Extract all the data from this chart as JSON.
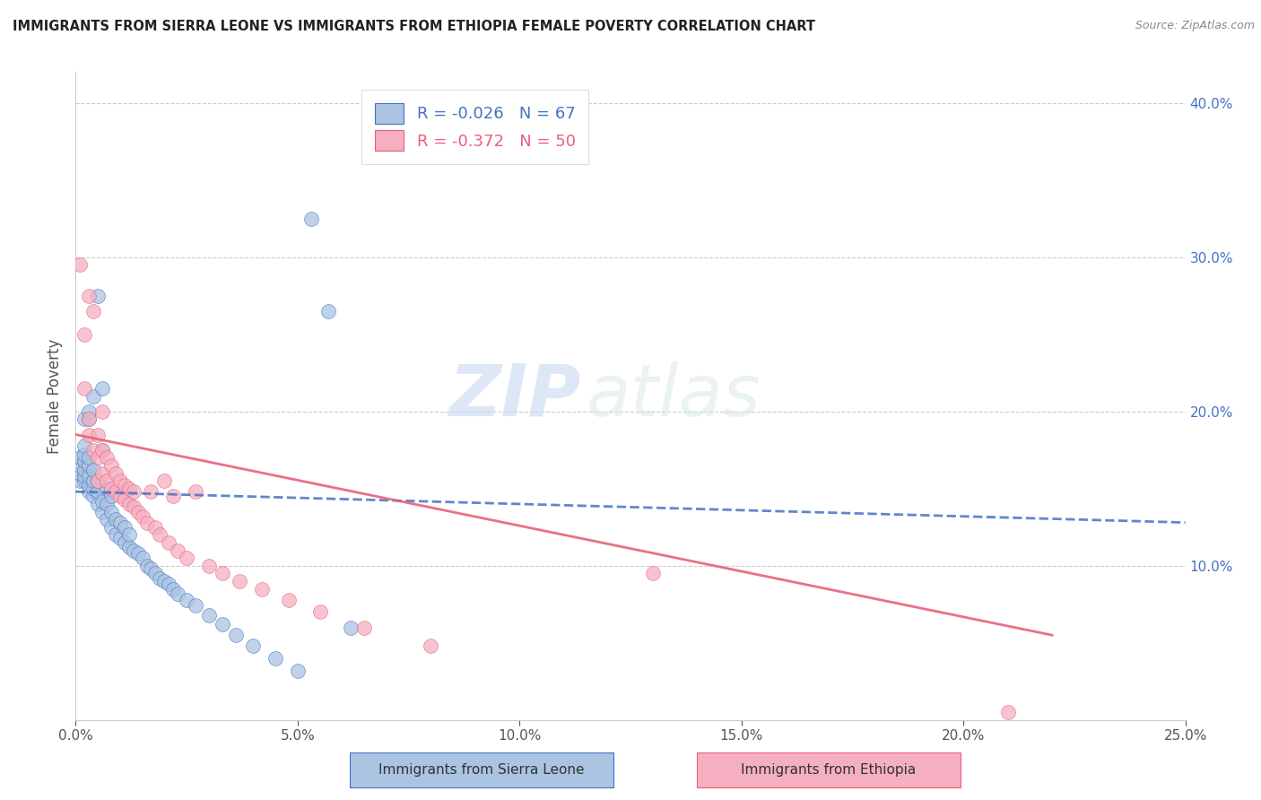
{
  "title": "IMMIGRANTS FROM SIERRA LEONE VS IMMIGRANTS FROM ETHIOPIA FEMALE POVERTY CORRELATION CHART",
  "source": "Source: ZipAtlas.com",
  "ylabel": "Female Poverty",
  "legend_label1": "Immigrants from Sierra Leone",
  "legend_label2": "Immigrants from Ethiopia",
  "R1": -0.026,
  "N1": 67,
  "R2": -0.372,
  "N2": 50,
  "color1": "#aac4e2",
  "color2": "#f5afc0",
  "line_color1": "#4472c4",
  "line_color2": "#e8607a",
  "trend_color1": "#4472c4",
  "trend_color2": "#e8607a",
  "xlim": [
    0.0,
    0.25
  ],
  "ylim": [
    0.0,
    0.42
  ],
  "xticks": [
    0.0,
    0.05,
    0.1,
    0.15,
    0.2,
    0.25
  ],
  "xticklabels": [
    "0.0%",
    "5.0%",
    "10.0%",
    "15.0%",
    "20.0%",
    "25.0%"
  ],
  "yticks_right": [
    0.1,
    0.2,
    0.3,
    0.4
  ],
  "ytick_right_labels": [
    "10.0%",
    "20.0%",
    "30.0%",
    "40.0%"
  ],
  "watermark_zip": "ZIP",
  "watermark_atlas": "atlas",
  "sl_x": [
    0.001,
    0.001,
    0.001,
    0.001,
    0.002,
    0.002,
    0.002,
    0.002,
    0.002,
    0.002,
    0.002,
    0.003,
    0.003,
    0.003,
    0.003,
    0.003,
    0.003,
    0.003,
    0.004,
    0.004,
    0.004,
    0.004,
    0.004,
    0.005,
    0.005,
    0.005,
    0.005,
    0.006,
    0.006,
    0.006,
    0.006,
    0.007,
    0.007,
    0.007,
    0.008,
    0.008,
    0.008,
    0.009,
    0.009,
    0.01,
    0.01,
    0.011,
    0.011,
    0.012,
    0.012,
    0.013,
    0.014,
    0.015,
    0.016,
    0.017,
    0.018,
    0.019,
    0.02,
    0.021,
    0.022,
    0.023,
    0.025,
    0.027,
    0.03,
    0.033,
    0.036,
    0.04,
    0.045,
    0.05,
    0.053,
    0.057,
    0.062
  ],
  "sl_y": [
    0.155,
    0.16,
    0.165,
    0.17,
    0.155,
    0.158,
    0.162,
    0.168,
    0.172,
    0.178,
    0.195,
    0.148,
    0.152,
    0.158,
    0.165,
    0.17,
    0.195,
    0.2,
    0.145,
    0.15,
    0.155,
    0.162,
    0.21,
    0.14,
    0.148,
    0.155,
    0.275,
    0.135,
    0.142,
    0.175,
    0.215,
    0.13,
    0.14,
    0.15,
    0.125,
    0.135,
    0.145,
    0.12,
    0.13,
    0.118,
    0.128,
    0.115,
    0.125,
    0.112,
    0.12,
    0.11,
    0.108,
    0.105,
    0.1,
    0.098,
    0.095,
    0.092,
    0.09,
    0.088,
    0.085,
    0.082,
    0.078,
    0.074,
    0.068,
    0.062,
    0.055,
    0.048,
    0.04,
    0.032,
    0.325,
    0.265,
    0.06
  ],
  "eth_x": [
    0.001,
    0.002,
    0.002,
    0.003,
    0.003,
    0.003,
    0.004,
    0.004,
    0.005,
    0.005,
    0.005,
    0.006,
    0.006,
    0.006,
    0.007,
    0.007,
    0.008,
    0.008,
    0.009,
    0.009,
    0.01,
    0.01,
    0.011,
    0.011,
    0.012,
    0.012,
    0.013,
    0.013,
    0.014,
    0.015,
    0.016,
    0.017,
    0.018,
    0.019,
    0.02,
    0.021,
    0.022,
    0.023,
    0.025,
    0.027,
    0.03,
    0.033,
    0.037,
    0.042,
    0.048,
    0.055,
    0.065,
    0.08,
    0.13,
    0.21
  ],
  "eth_y": [
    0.295,
    0.215,
    0.25,
    0.185,
    0.195,
    0.275,
    0.175,
    0.265,
    0.17,
    0.185,
    0.155,
    0.16,
    0.175,
    0.2,
    0.155,
    0.17,
    0.15,
    0.165,
    0.148,
    0.16,
    0.145,
    0.155,
    0.143,
    0.152,
    0.14,
    0.15,
    0.138,
    0.148,
    0.135,
    0.132,
    0.128,
    0.148,
    0.125,
    0.12,
    0.155,
    0.115,
    0.145,
    0.11,
    0.105,
    0.148,
    0.1,
    0.095,
    0.09,
    0.085,
    0.078,
    0.07,
    0.06,
    0.048,
    0.095,
    0.005
  ],
  "sl_trend_x": [
    0.0,
    0.25
  ],
  "sl_trend_y": [
    0.148,
    0.128
  ],
  "eth_trend_x": [
    0.0,
    0.22
  ],
  "eth_trend_y": [
    0.185,
    0.055
  ]
}
